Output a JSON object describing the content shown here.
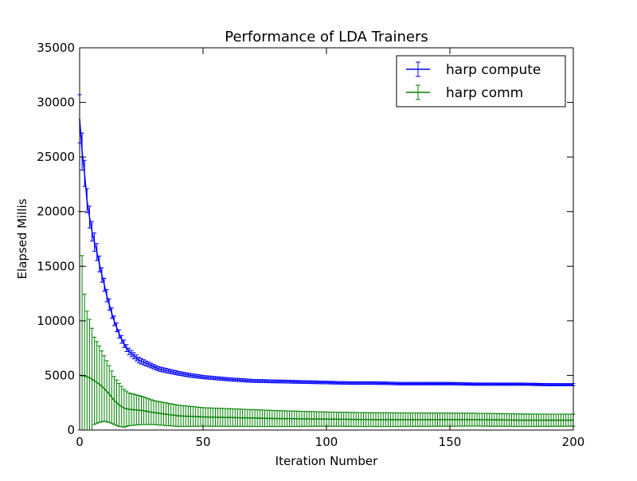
{
  "chart_data": {
    "type": "line",
    "title": "Performance of LDA Trainers",
    "xlabel": "Iteration Number",
    "ylabel": "Elapsed Millis",
    "xlim": [
      0,
      200
    ],
    "ylim": [
      0,
      35000
    ],
    "x_ticks": [
      0,
      50,
      100,
      150,
      200
    ],
    "y_ticks": [
      0,
      5000,
      10000,
      15000,
      20000,
      25000,
      30000,
      35000
    ],
    "grid": false,
    "legend_position": "top-right",
    "error_bars": true,
    "series": [
      {
        "name": "harp compute",
        "color": "#0000ff",
        "anchors": [
          [
            0,
            28500
          ],
          [
            1,
            25500
          ],
          [
            2,
            23500
          ],
          [
            3,
            21000
          ],
          [
            4,
            19500
          ],
          [
            5,
            18200
          ],
          [
            6,
            17200
          ],
          [
            7,
            16300
          ],
          [
            8,
            15200
          ],
          [
            9,
            14200
          ],
          [
            10,
            13300
          ],
          [
            11,
            12300
          ],
          [
            12,
            11500
          ],
          [
            13,
            10700
          ],
          [
            14,
            10000
          ],
          [
            15,
            9400
          ],
          [
            16,
            8800
          ],
          [
            17,
            8300
          ],
          [
            18,
            7900
          ],
          [
            19,
            7500
          ],
          [
            20,
            7200
          ],
          [
            22,
            6800
          ],
          [
            24,
            6400
          ],
          [
            26,
            6200
          ],
          [
            28,
            6000
          ],
          [
            30,
            5800
          ],
          [
            32,
            5600
          ],
          [
            34,
            5500
          ],
          [
            36,
            5400
          ],
          [
            40,
            5200
          ],
          [
            45,
            5000
          ],
          [
            50,
            4850
          ],
          [
            55,
            4750
          ],
          [
            60,
            4650
          ],
          [
            70,
            4500
          ],
          [
            80,
            4450
          ],
          [
            90,
            4400
          ],
          [
            100,
            4350
          ],
          [
            110,
            4300
          ],
          [
            120,
            4300
          ],
          [
            130,
            4250
          ],
          [
            140,
            4250
          ],
          [
            150,
            4250
          ],
          [
            160,
            4200
          ],
          [
            170,
            4200
          ],
          [
            180,
            4200
          ],
          [
            190,
            4150
          ],
          [
            200,
            4150
          ]
        ],
        "error_anchors": [
          [
            0,
            2200
          ],
          [
            2,
            1200
          ],
          [
            5,
            900
          ],
          [
            10,
            600
          ],
          [
            15,
            400
          ],
          [
            20,
            300
          ],
          [
            30,
            200
          ],
          [
            50,
            150
          ],
          [
            100,
            120
          ],
          [
            200,
            100
          ]
        ]
      },
      {
        "name": "harp comm",
        "color": "#008000",
        "anchors": [
          [
            0,
            5000
          ],
          [
            2,
            4950
          ],
          [
            4,
            4800
          ],
          [
            6,
            4500
          ],
          [
            8,
            4200
          ],
          [
            10,
            3800
          ],
          [
            12,
            3300
          ],
          [
            14,
            2700
          ],
          [
            16,
            2300
          ],
          [
            18,
            2000
          ],
          [
            20,
            1900
          ],
          [
            25,
            1800
          ],
          [
            30,
            1600
          ],
          [
            40,
            1300
          ],
          [
            50,
            1200
          ],
          [
            60,
            1150
          ],
          [
            80,
            1050
          ],
          [
            100,
            1000
          ],
          [
            120,
            950
          ],
          [
            140,
            950
          ],
          [
            160,
            950
          ],
          [
            180,
            900
          ],
          [
            200,
            900
          ]
        ],
        "error_anchors": [
          [
            0,
            15000
          ],
          [
            1,
            11000
          ],
          [
            2,
            7500
          ],
          [
            3,
            6000
          ],
          [
            6,
            4000
          ],
          [
            10,
            3000
          ],
          [
            14,
            2200
          ],
          [
            20,
            1500
          ],
          [
            30,
            1100
          ],
          [
            50,
            850
          ],
          [
            100,
            650
          ],
          [
            200,
            550
          ]
        ]
      }
    ]
  }
}
